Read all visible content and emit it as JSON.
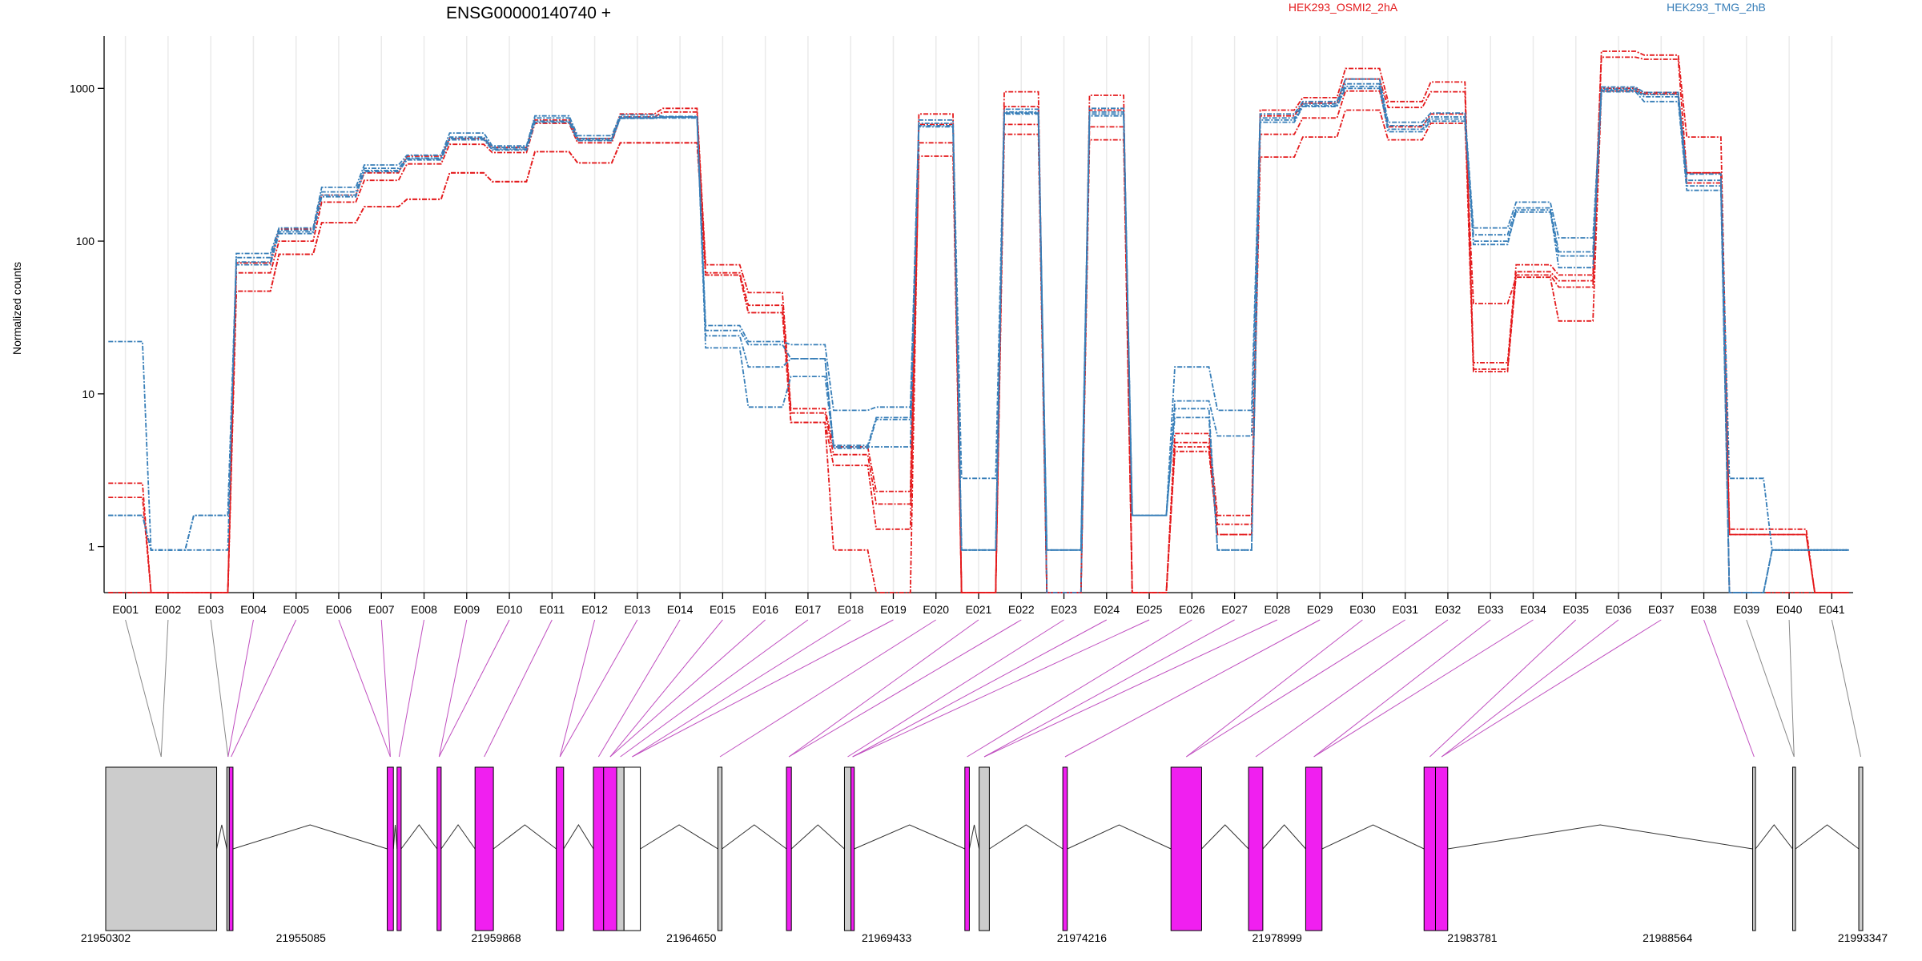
{
  "chart_data": {
    "type": "line",
    "title": "ENSG00000140740 +",
    "ylabel": "Normalized counts",
    "xlabel": "",
    "yscale": "log",
    "ylim": [
      0.5,
      2200
    ],
    "y_ticks": [
      1,
      10,
      100,
      1000
    ],
    "y_tick_labels": [
      "1",
      "10",
      "100",
      "1000"
    ],
    "grid": "vertical",
    "legend": [
      {
        "name": "HEK293_OSMI2_2hA",
        "color": "#e41a1c",
        "position": "top-center"
      },
      {
        "name": "HEK293_TMG_2hB",
        "color": "#377eb8",
        "position": "top-right"
      }
    ],
    "categories": [
      "E001",
      "E002",
      "E003",
      "E004",
      "E005",
      "E006",
      "E007",
      "E008",
      "E009",
      "E010",
      "E011",
      "E012",
      "E013",
      "E014",
      "E015",
      "E016",
      "E017",
      "E018",
      "E019",
      "E020",
      "E021",
      "E022",
      "E023",
      "E024",
      "E025",
      "E026",
      "E027",
      "E028",
      "E029",
      "E030",
      "E031",
      "E032",
      "E033",
      "E034",
      "E035",
      "E036",
      "E037",
      "E038",
      "E039",
      "E040",
      "E041"
    ],
    "series": [
      {
        "group": "HEK293_OSMI2_2hA",
        "color": "#e41a1c",
        "values": [
          2.6,
          0.5,
          0.5,
          72,
          120,
          200,
          280,
          360,
          470,
          410,
          620,
          470,
          680,
          740,
          70,
          46,
          8,
          4.5,
          2.3,
          680,
          0.5,
          950,
          0.5,
          900,
          0.5,
          5.5,
          1.6,
          720,
          870,
          1350,
          820,
          1100,
          16,
          70,
          60,
          1750,
          1650,
          480,
          1.3,
          1.3,
          0.5
        ]
      },
      {
        "group": "HEK293_OSMI2_2hA",
        "color": "#e41a1c",
        "values": [
          2.1,
          0.5,
          0.5,
          62,
          100,
          180,
          250,
          320,
          430,
          380,
          590,
          440,
          650,
          700,
          62,
          38,
          7.5,
          4,
          1.9,
          580,
          0.5,
          760,
          0.5,
          720,
          0.5,
          4.8,
          1.4,
          660,
          800,
          1150,
          750,
          950,
          14.5,
          63,
          55,
          1600,
          1550,
          280,
          1.2,
          1.2,
          0.5
        ]
      },
      {
        "group": "HEK293_OSMI2_2hA",
        "color": "#e41a1c",
        "values": [
          0.5,
          0.5,
          0.5,
          47,
          82,
          132,
          168,
          188,
          280,
          245,
          385,
          325,
          440,
          440,
          60,
          34,
          6.5,
          3.4,
          1.3,
          360,
          0.5,
          500,
          0.5,
          460,
          0.5,
          4.2,
          1.2,
          355,
          480,
          720,
          460,
          590,
          39,
          58,
          30,
          960,
          920,
          240,
          1.2,
          1.2,
          0.5
        ]
      },
      {
        "group": "HEK293_OSMI2_2hA",
        "color": "#e41a1c",
        "values": [
          0.5,
          0.5,
          0.5,
          47,
          82,
          132,
          168,
          188,
          280,
          245,
          385,
          325,
          440,
          440,
          60,
          34,
          6.5,
          0.95,
          0.5,
          440,
          0.5,
          580,
          0.5,
          560,
          0.5,
          4.5,
          1.2,
          500,
          640,
          960,
          560,
          680,
          14,
          60,
          50,
          1000,
          940,
          280,
          0.5,
          0.5,
          0.5
        ]
      },
      {
        "group": "HEK293_TMG_2hB",
        "color": "#377eb8",
        "values": [
          22,
          0.95,
          0.95,
          83,
          122,
          225,
          315,
          365,
          510,
          420,
          660,
          490,
          670,
          655,
          28,
          22,
          21,
          7.8,
          8.2,
          620,
          2.8,
          730,
          0.95,
          740,
          1.6,
          15,
          7.8,
          680,
          820,
          1150,
          600,
          690,
          122,
          180,
          105,
          1020,
          940,
          275,
          2.8,
          0.95,
          0.95
        ]
      },
      {
        "group": "HEK293_TMG_2hB",
        "color": "#377eb8",
        "values": [
          1.6,
          0.95,
          1.6,
          78,
          118,
          210,
          300,
          350,
          480,
          410,
          640,
          470,
          650,
          640,
          24,
          15,
          17,
          4.6,
          7,
          590,
          0.95,
          700,
          0.95,
          700,
          1.6,
          9,
          5.3,
          640,
          790,
          1070,
          570,
          650,
          110,
          165,
          85,
          990,
          910,
          250,
          0.5,
          0.95,
          0.95
        ]
      },
      {
        "group": "HEK293_TMG_2hB",
        "color": "#377eb8",
        "values": [
          1.6,
          0.95,
          1.6,
          70,
          112,
          195,
          290,
          345,
          470,
          400,
          610,
          460,
          640,
          650,
          20,
          8.2,
          13,
          4.5,
          4.5,
          570,
          0.95,
          690,
          0.5,
          680,
          1.6,
          7,
          0.95,
          620,
          770,
          1030,
          540,
          630,
          95,
          160,
          67,
          970,
          880,
          230,
          0.5,
          0.95,
          0.95
        ]
      },
      {
        "group": "HEK293_TMG_2hB",
        "color": "#377eb8",
        "values": [
          1.6,
          0.95,
          1.6,
          73,
          115,
          200,
          285,
          340,
          460,
          395,
          600,
          455,
          635,
          645,
          26,
          21,
          17,
          4.4,
          6.8,
          560,
          0.95,
          680,
          0.95,
          660,
          1.6,
          8,
          0.95,
          600,
          760,
          1000,
          520,
          610,
          100,
          155,
          80,
          950,
          820,
          215,
          0.5,
          0.95,
          0.95
        ]
      }
    ],
    "exon_mapping": {
      "plum_exons": [
        "E004",
        "E005",
        "E006",
        "E007",
        "E008",
        "E009",
        "E010",
        "E011",
        "E012",
        "E013",
        "E014",
        "E015",
        "E016",
        "E017",
        "E018",
        "E019",
        "E020",
        "E021",
        "E022",
        "E023",
        "E024",
        "E025",
        "E026",
        "E027",
        "E028",
        "E029",
        "E030",
        "E031",
        "E032",
        "E033",
        "E034",
        "E035",
        "E036",
        "E037",
        "E038"
      ]
    },
    "genome_axis": {
      "range": [
        21950302,
        21993347
      ],
      "tick_labels": [
        "21950302",
        "21955085",
        "21959868",
        "21964650",
        "21969433",
        "21974216",
        "21978999",
        "21983781",
        "21988564",
        "21993347"
      ]
    },
    "gene_model": {
      "highlight_color": "#f01ff0",
      "plain_color": "#cccccc",
      "features": [
        {
          "type": "plain",
          "start": 21950302,
          "end": 21953020
        },
        {
          "type": "plain",
          "start": 21953270,
          "end": 21953330
        },
        {
          "type": "highlight",
          "start": 21953330,
          "end": 21953420
        },
        {
          "type": "highlight",
          "start": 21957200,
          "end": 21957350
        },
        {
          "type": "highlight",
          "start": 21957440,
          "end": 21957540
        },
        {
          "type": "highlight",
          "start": 21958420,
          "end": 21958520
        },
        {
          "type": "highlight",
          "start": 21959350,
          "end": 21959800
        },
        {
          "type": "highlight",
          "start": 21961340,
          "end": 21961520
        },
        {
          "type": "highlight",
          "start": 21962250,
          "end": 21962500
        },
        {
          "type": "highlight",
          "start": 21962500,
          "end": 21962820
        },
        {
          "type": "plain",
          "start": 21962820,
          "end": 21963000
        },
        {
          "type": "white",
          "start": 21963000,
          "end": 21963400
        },
        {
          "type": "plain",
          "start": 21965300,
          "end": 21965400
        },
        {
          "type": "highlight",
          "start": 21966980,
          "end": 21967100
        },
        {
          "type": "plain",
          "start": 21968400,
          "end": 21968560
        },
        {
          "type": "highlight",
          "start": 21968560,
          "end": 21968640
        },
        {
          "type": "highlight",
          "start": 21971350,
          "end": 21971460
        },
        {
          "type": "plain",
          "start": 21971700,
          "end": 21971950
        },
        {
          "type": "highlight",
          "start": 21973750,
          "end": 21973860
        },
        {
          "type": "highlight",
          "start": 21976400,
          "end": 21977150
        },
        {
          "type": "highlight",
          "start": 21978300,
          "end": 21978650
        },
        {
          "type": "highlight",
          "start": 21979700,
          "end": 21980100
        },
        {
          "type": "highlight",
          "start": 21982600,
          "end": 21982880
        },
        {
          "type": "highlight",
          "start": 21982880,
          "end": 21983180
        },
        {
          "type": "plain",
          "start": 21990650,
          "end": 21990720
        },
        {
          "type": "plain",
          "start": 21991630,
          "end": 21991700
        },
        {
          "type": "plain",
          "start": 21993250,
          "end": 21993347
        }
      ]
    }
  }
}
